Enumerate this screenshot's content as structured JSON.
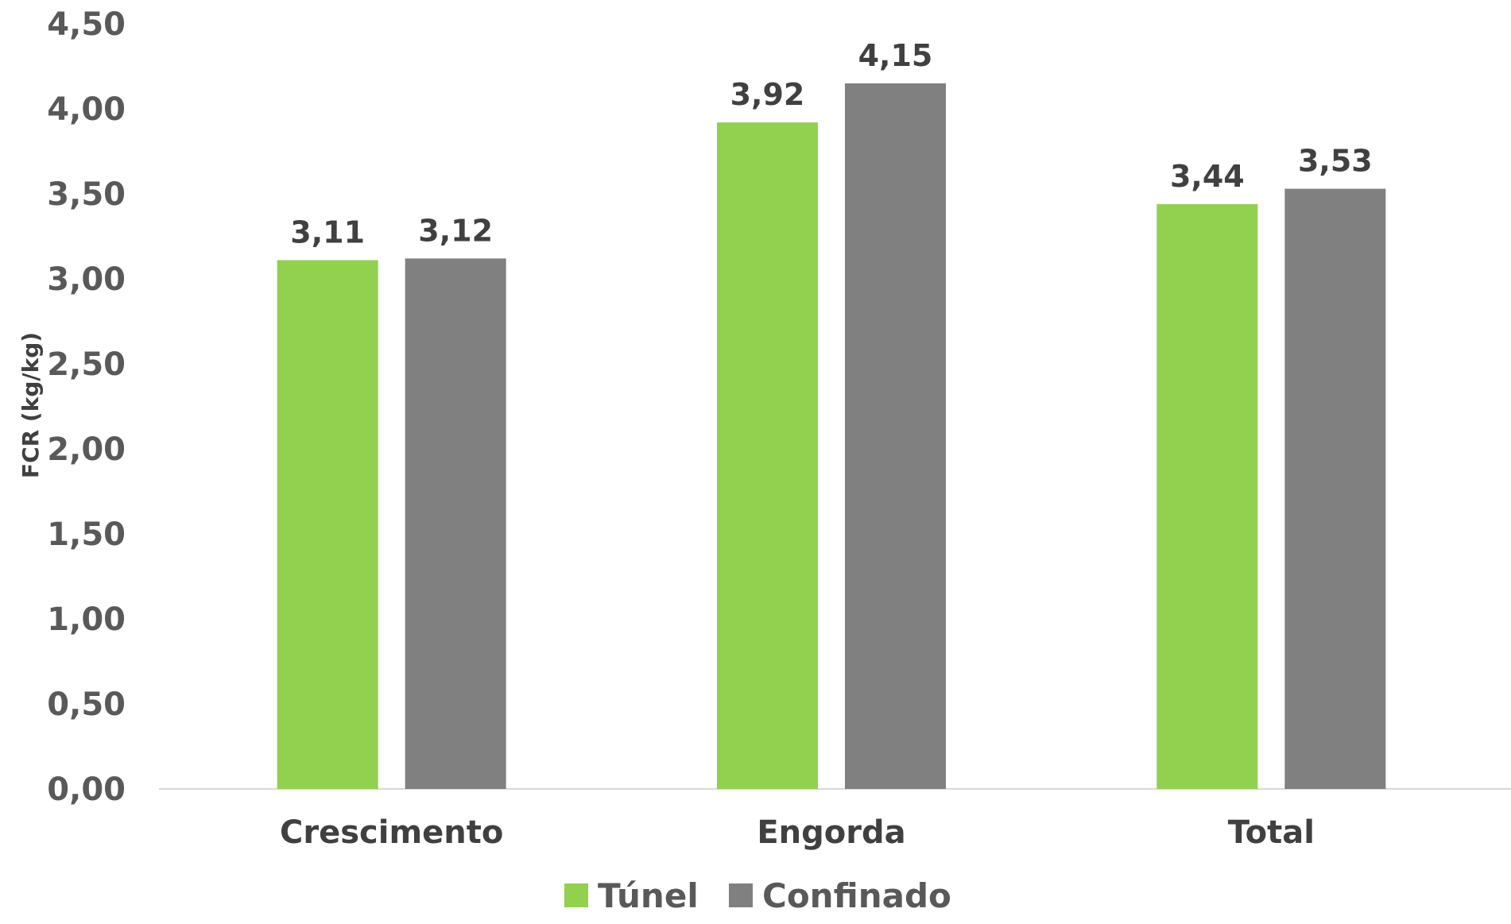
{
  "chart_data": {
    "type": "bar",
    "title": "",
    "xlabel": "",
    "ylabel": "FCR (kg/kg)",
    "ylim": [
      0,
      4.5
    ],
    "y_ticks": [
      "0,00",
      "0,50",
      "1,00",
      "1,50",
      "2,00",
      "2,50",
      "3,00",
      "3,50",
      "4,00",
      "4,50"
    ],
    "grid": false,
    "legend_position": "bottom-center",
    "categories": [
      "Crescimento",
      "Engorda",
      "Total"
    ],
    "series": [
      {
        "name": "Túnel",
        "color": "#92D050",
        "values": [
          3.11,
          3.92,
          3.44
        ],
        "labels": [
          "3,11",
          "3,92",
          "3,44"
        ]
      },
      {
        "name": "Confinado",
        "color": "#808080",
        "values": [
          3.12,
          4.15,
          3.53
        ],
        "labels": [
          "3,12",
          "4,15",
          "3,53"
        ]
      }
    ]
  }
}
